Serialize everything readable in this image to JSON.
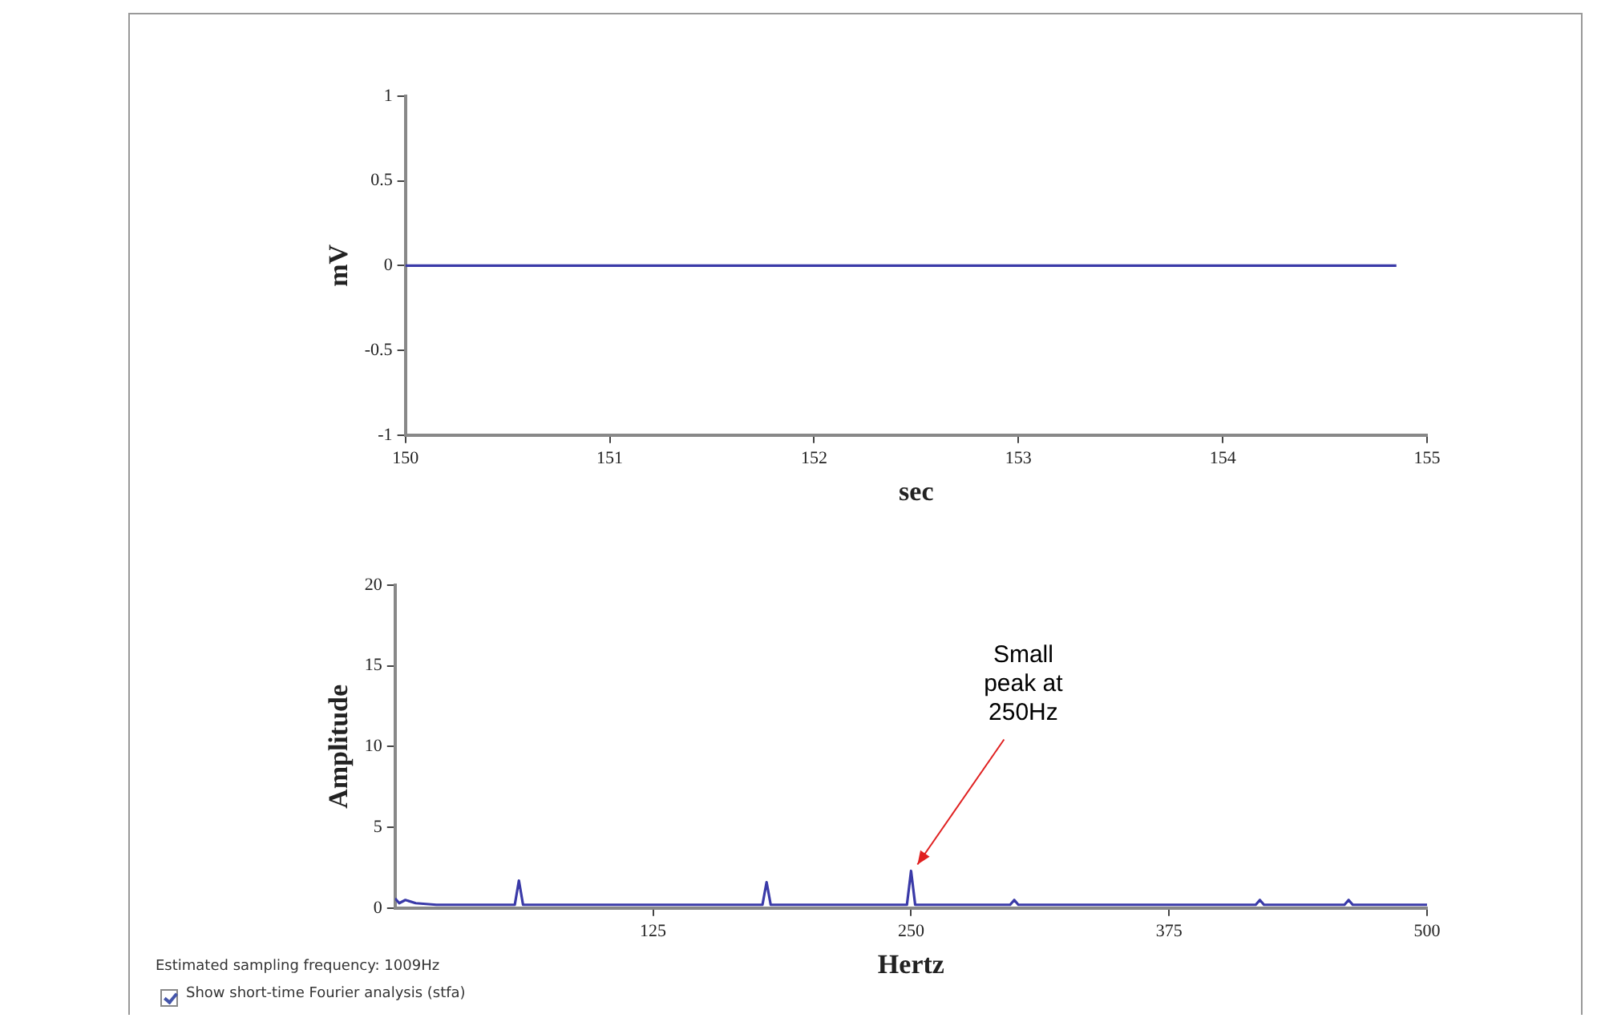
{
  "chart_data": [
    {
      "type": "line",
      "xlabel": "sec",
      "ylabel": "mV",
      "xlim": [
        150,
        155
      ],
      "xticks": [
        150,
        151,
        152,
        153,
        154,
        155
      ],
      "ylim": [
        -1,
        1
      ],
      "yticks": [
        -1,
        -0.5,
        0,
        0.5,
        1
      ],
      "marker": "none",
      "legend": false,
      "series": [
        {
          "color": "#3a3aa8",
          "x": [
            150,
            154.85
          ],
          "values": [
            0,
            0
          ]
        }
      ]
    },
    {
      "type": "line",
      "xlabel": "Hertz",
      "ylabel": "Amplitude",
      "xlim": [
        0,
        500
      ],
      "xticks": [
        125,
        250,
        375,
        500
      ],
      "ylim": [
        0,
        20
      ],
      "yticks": [
        0,
        5,
        10,
        15,
        20
      ],
      "marker": "none",
      "legend": false,
      "series": [
        {
          "color": "#3a3aa8",
          "x": [
            0,
            2,
            5,
            10,
            20,
            40,
            58,
            60,
            62,
            100,
            150,
            178,
            180,
            182,
            220,
            248,
            250,
            252,
            298,
            300,
            302,
            350,
            417,
            419,
            421,
            460,
            462,
            464,
            500
          ],
          "values": [
            0.6,
            0.3,
            0.5,
            0.3,
            0.2,
            0.2,
            0.2,
            1.7,
            0.2,
            0.2,
            0.2,
            0.2,
            1.6,
            0.2,
            0.2,
            0.2,
            2.3,
            0.2,
            0.2,
            0.5,
            0.2,
            0.2,
            0.2,
            0.5,
            0.2,
            0.2,
            0.5,
            0.2,
            0.2
          ]
        }
      ],
      "annotations": [
        {
          "text": "Small peak at 250Hz",
          "x": 250,
          "y": 2.3
        },
        "Estimated sampling frequency: 1009Hz",
        "Show short-time Fourier analysis (stfa)"
      ]
    }
  ]
}
